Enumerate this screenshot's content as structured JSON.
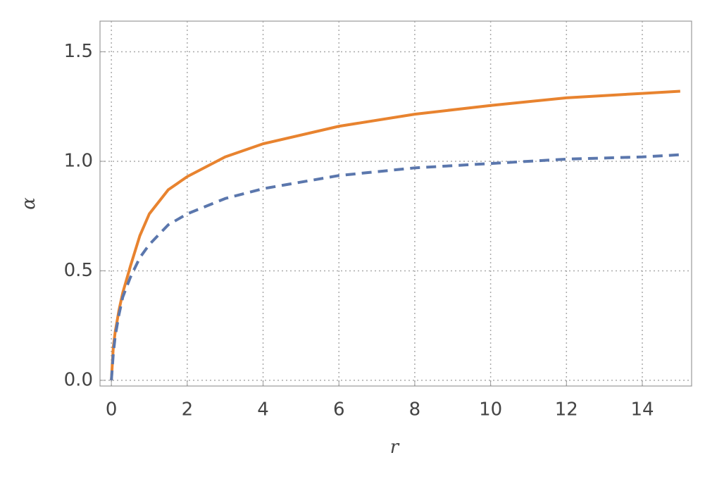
{
  "chart_data": {
    "type": "line",
    "x_label": "r",
    "y_label": "α",
    "x": [
      0,
      0.05,
      0.1,
      0.2,
      0.3,
      0.5,
      0.75,
      1,
      1.5,
      2,
      3,
      4,
      6,
      8,
      10,
      12,
      14,
      15
    ],
    "series": [
      {
        "color": "#e8832f",
        "dash": false,
        "values": [
          0,
          0.15,
          0.22,
          0.32,
          0.4,
          0.52,
          0.66,
          0.76,
          0.87,
          0.93,
          1.02,
          1.08,
          1.16,
          1.215,
          1.255,
          1.29,
          1.31,
          1.32
        ]
      },
      {
        "color": "#5b77ad",
        "dash": true,
        "values": [
          0,
          0.12,
          0.2,
          0.3,
          0.38,
          0.47,
          0.56,
          0.62,
          0.71,
          0.76,
          0.83,
          0.875,
          0.935,
          0.97,
          0.99,
          1.01,
          1.02,
          1.03
        ]
      }
    ],
    "xlim": [
      -0.3,
      15.3
    ],
    "ylim": [
      -0.026,
      1.64
    ],
    "xticks": [
      0,
      2,
      4,
      6,
      8,
      10,
      12,
      14
    ],
    "yticks": [
      {
        "value": 0,
        "label": "0.0"
      },
      0.5,
      {
        "value": 1,
        "label": "1.0"
      },
      1.5
    ],
    "grid": true
  }
}
